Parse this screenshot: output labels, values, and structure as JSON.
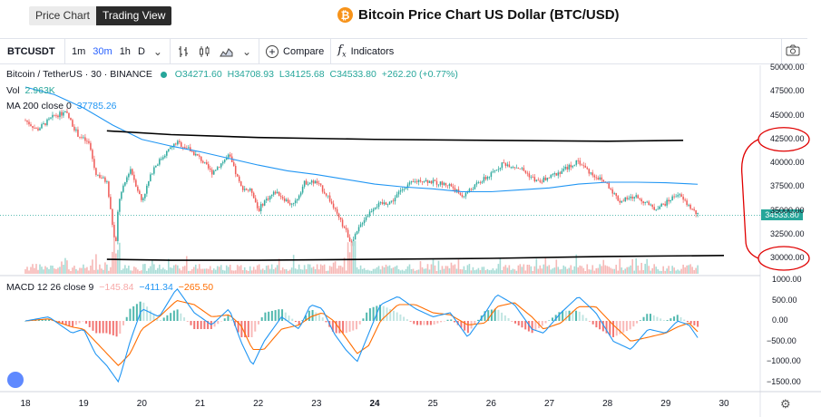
{
  "tabs": [
    {
      "label": "Price Chart",
      "active": false
    },
    {
      "label": "Trading View",
      "active": true
    }
  ],
  "page_title": "Bitcoin Price Chart US Dollar (BTC/USD)",
  "btc_icon_glyph": "₿",
  "toolbar": {
    "symbol": "BTCUSDT",
    "intervals": [
      {
        "label": "1m",
        "active": false
      },
      {
        "label": "30m",
        "active": true
      },
      {
        "label": "1h",
        "active": false
      },
      {
        "label": "D",
        "active": false
      }
    ],
    "compare_label": "Compare",
    "indicators_label": "Indicators",
    "icons": [
      "chevron-down-icon",
      "bar-style-icon",
      "candle-style-icon",
      "area-style-icon",
      "add-icon",
      "function-icon",
      "camera-icon"
    ]
  },
  "legend": {
    "symbol": "Bitcoin / TetherUS · 30 · BINANCE",
    "open": "O34271.60",
    "high": "H34708.93",
    "low": "L34125.68",
    "close": "C34533.80",
    "change": "+262.20 (+0.77%)",
    "vol_label": "Vol",
    "vol_value": "2.963K",
    "ma_label": "MA 200 close 0",
    "ma_value": "37785.26",
    "macd_label": "MACD 12 26 close 9",
    "macd_hist": "−145.84",
    "macd_line": "−411.34",
    "macd_signal": "−265.50"
  },
  "price_tag": "34533.80",
  "colors": {
    "up": "#26a69a",
    "down": "#ef5350",
    "ma": "#2196f3",
    "macd_line": "#2196f3",
    "signal_line": "#ff6d00",
    "annotation": "#e00000",
    "trendline": "#000000"
  },
  "chart_data": [
    {
      "type": "candlestick",
      "title": "Bitcoin / TetherUS · 30 · BINANCE",
      "ylim": [
        28500,
        50000
      ],
      "y_ticks": [
        "50000.00",
        "47500.00",
        "45000.00",
        "42500.00",
        "40000.00",
        "37500.00",
        "35000.00",
        "32500.00",
        "30000.00"
      ],
      "x_ticks": [
        "18",
        "19",
        "20",
        "21",
        "22",
        "23",
        "24",
        "25",
        "26",
        "27",
        "28",
        "29",
        "30"
      ],
      "bold_x_ticks": [
        "24"
      ],
      "price_path": [
        [
          18.0,
          44500
        ],
        [
          18.2,
          43500
        ],
        [
          18.5,
          45000
        ],
        [
          18.7,
          45300
        ],
        [
          18.9,
          43000
        ],
        [
          19.1,
          42000
        ],
        [
          19.2,
          39000
        ],
        [
          19.4,
          38000
        ],
        [
          19.55,
          31000
        ],
        [
          19.6,
          36000
        ],
        [
          19.8,
          39500
        ],
        [
          20.0,
          36000
        ],
        [
          20.2,
          39500
        ],
        [
          20.4,
          41000
        ],
        [
          20.6,
          42200
        ],
        [
          20.8,
          41500
        ],
        [
          21.0,
          40500
        ],
        [
          21.2,
          39000
        ],
        [
          21.5,
          40800
        ],
        [
          21.7,
          37500
        ],
        [
          21.9,
          37000
        ],
        [
          22.0,
          35000
        ],
        [
          22.1,
          36000
        ],
        [
          22.3,
          37000
        ],
        [
          22.6,
          35500
        ],
        [
          22.8,
          38000
        ],
        [
          23.0,
          38000
        ],
        [
          23.2,
          36500
        ],
        [
          23.4,
          34000
        ],
        [
          23.5,
          33000
        ],
        [
          23.6,
          31500
        ],
        [
          23.8,
          34000
        ],
        [
          24.0,
          35500
        ],
        [
          24.3,
          36000
        ],
        [
          24.5,
          37500
        ],
        [
          24.8,
          38300
        ],
        [
          25.0,
          38000
        ],
        [
          25.3,
          37700
        ],
        [
          25.5,
          36500
        ],
        [
          25.8,
          38000
        ],
        [
          26.0,
          38800
        ],
        [
          26.2,
          40000
        ],
        [
          26.5,
          39500
        ],
        [
          26.8,
          38000
        ],
        [
          27.0,
          38500
        ],
        [
          27.3,
          39500
        ],
        [
          27.5,
          40200
        ],
        [
          27.7,
          39000
        ],
        [
          28.0,
          37800
        ],
        [
          28.2,
          36000
        ],
        [
          28.5,
          36500
        ],
        [
          28.8,
          35200
        ],
        [
          29.0,
          35800
        ],
        [
          29.2,
          36800
        ],
        [
          29.4,
          35500
        ],
        [
          29.55,
          34533.8
        ]
      ],
      "ma200": [
        [
          18.0,
          48000
        ],
        [
          18.5,
          47200
        ],
        [
          19.0,
          45800
        ],
        [
          19.5,
          44000
        ],
        [
          20.0,
          42500
        ],
        [
          20.5,
          41800
        ],
        [
          21.0,
          41200
        ],
        [
          21.5,
          40500
        ],
        [
          22.0,
          39800
        ],
        [
          22.5,
          39200
        ],
        [
          23.0,
          38800
        ],
        [
          23.5,
          38300
        ],
        [
          24.0,
          37800
        ],
        [
          24.5,
          37500
        ],
        [
          25.0,
          37300
        ],
        [
          25.5,
          37000
        ],
        [
          26.0,
          37000
        ],
        [
          26.5,
          37200
        ],
        [
          27.0,
          37400
        ],
        [
          27.5,
          37800
        ],
        [
          28.0,
          38000
        ],
        [
          28.5,
          38000
        ],
        [
          29.0,
          37950
        ],
        [
          29.55,
          37785.26
        ]
      ],
      "trendlines": [
        {
          "points": [
            [
              19.4,
              43400
            ],
            [
              20.5,
              43000
            ],
            [
              22.0,
              42700
            ],
            [
              24.0,
              42500
            ],
            [
              26.0,
              42400
            ],
            [
              28.0,
              42300
            ],
            [
              29.3,
              42400
            ]
          ]
        },
        {
          "points": [
            [
              19.4,
              29900
            ],
            [
              20.5,
              29800
            ],
            [
              22.0,
              29800
            ],
            [
              24.0,
              29900
            ],
            [
              26.0,
              30000
            ],
            [
              28.0,
              30200
            ],
            [
              30.0,
              30300
            ]
          ]
        }
      ],
      "annotations": [
        {
          "type": "ellipse",
          "price": 42500
        },
        {
          "type": "ellipse",
          "price": 30000
        }
      ]
    },
    {
      "type": "macd",
      "title": "MACD 12 26 close 9",
      "ylim": [
        -1700,
        1200
      ],
      "y_ticks": [
        "1000.00",
        "500.00",
        "0.00",
        "−500.00",
        "−1000.00",
        "−1500.00"
      ],
      "macd": [
        [
          18.0,
          0
        ],
        [
          18.4,
          100
        ],
        [
          18.8,
          -300
        ],
        [
          19.0,
          -200
        ],
        [
          19.2,
          -800
        ],
        [
          19.4,
          -1100
        ],
        [
          19.6,
          -1500
        ],
        [
          19.8,
          -500
        ],
        [
          20.0,
          300
        ],
        [
          20.3,
          100
        ],
        [
          20.6,
          800
        ],
        [
          20.9,
          200
        ],
        [
          21.2,
          -100
        ],
        [
          21.5,
          300
        ],
        [
          21.7,
          -500
        ],
        [
          21.9,
          -1100
        ],
        [
          22.1,
          -500
        ],
        [
          22.4,
          100
        ],
        [
          22.7,
          -200
        ],
        [
          22.9,
          400
        ],
        [
          23.1,
          300
        ],
        [
          23.3,
          -300
        ],
        [
          23.5,
          -700
        ],
        [
          23.7,
          -1000
        ],
        [
          23.9,
          -300
        ],
        [
          24.1,
          400
        ],
        [
          24.4,
          600
        ],
        [
          24.7,
          300
        ],
        [
          25.0,
          100
        ],
        [
          25.3,
          200
        ],
        [
          25.6,
          -400
        ],
        [
          25.9,
          200
        ],
        [
          26.1,
          650
        ],
        [
          26.4,
          400
        ],
        [
          26.7,
          -200
        ],
        [
          26.9,
          -300
        ],
        [
          27.2,
          200
        ],
        [
          27.5,
          600
        ],
        [
          27.8,
          200
        ],
        [
          28.1,
          -500
        ],
        [
          28.4,
          -700
        ],
        [
          28.7,
          -200
        ],
        [
          29.0,
          -300
        ],
        [
          29.2,
          0
        ],
        [
          29.4,
          -100
        ],
        [
          29.55,
          -411.34
        ]
      ],
      "signal": [
        [
          18.0,
          0
        ],
        [
          18.4,
          50
        ],
        [
          18.8,
          -150
        ],
        [
          19.0,
          -200
        ],
        [
          19.2,
          -500
        ],
        [
          19.4,
          -800
        ],
        [
          19.6,
          -1100
        ],
        [
          19.8,
          -800
        ],
        [
          20.0,
          -200
        ],
        [
          20.3,
          100
        ],
        [
          20.6,
          500
        ],
        [
          20.9,
          400
        ],
        [
          21.2,
          100
        ],
        [
          21.5,
          150
        ],
        [
          21.7,
          -100
        ],
        [
          21.9,
          -700
        ],
        [
          22.1,
          -700
        ],
        [
          22.4,
          -200
        ],
        [
          22.7,
          -100
        ],
        [
          22.9,
          100
        ],
        [
          23.1,
          200
        ],
        [
          23.3,
          0
        ],
        [
          23.5,
          -400
        ],
        [
          23.7,
          -800
        ],
        [
          23.9,
          -600
        ],
        [
          24.1,
          0
        ],
        [
          24.4,
          400
        ],
        [
          24.7,
          400
        ],
        [
          25.0,
          200
        ],
        [
          25.3,
          150
        ],
        [
          25.6,
          -100
        ],
        [
          25.9,
          -50
        ],
        [
          26.1,
          350
        ],
        [
          26.4,
          450
        ],
        [
          26.7,
          100
        ],
        [
          26.9,
          -200
        ],
        [
          27.2,
          -50
        ],
        [
          27.5,
          350
        ],
        [
          27.8,
          350
        ],
        [
          28.1,
          -100
        ],
        [
          28.4,
          -500
        ],
        [
          28.7,
          -400
        ],
        [
          29.0,
          -300
        ],
        [
          29.2,
          -150
        ],
        [
          29.4,
          -50
        ],
        [
          29.55,
          -265.5
        ]
      ]
    }
  ]
}
